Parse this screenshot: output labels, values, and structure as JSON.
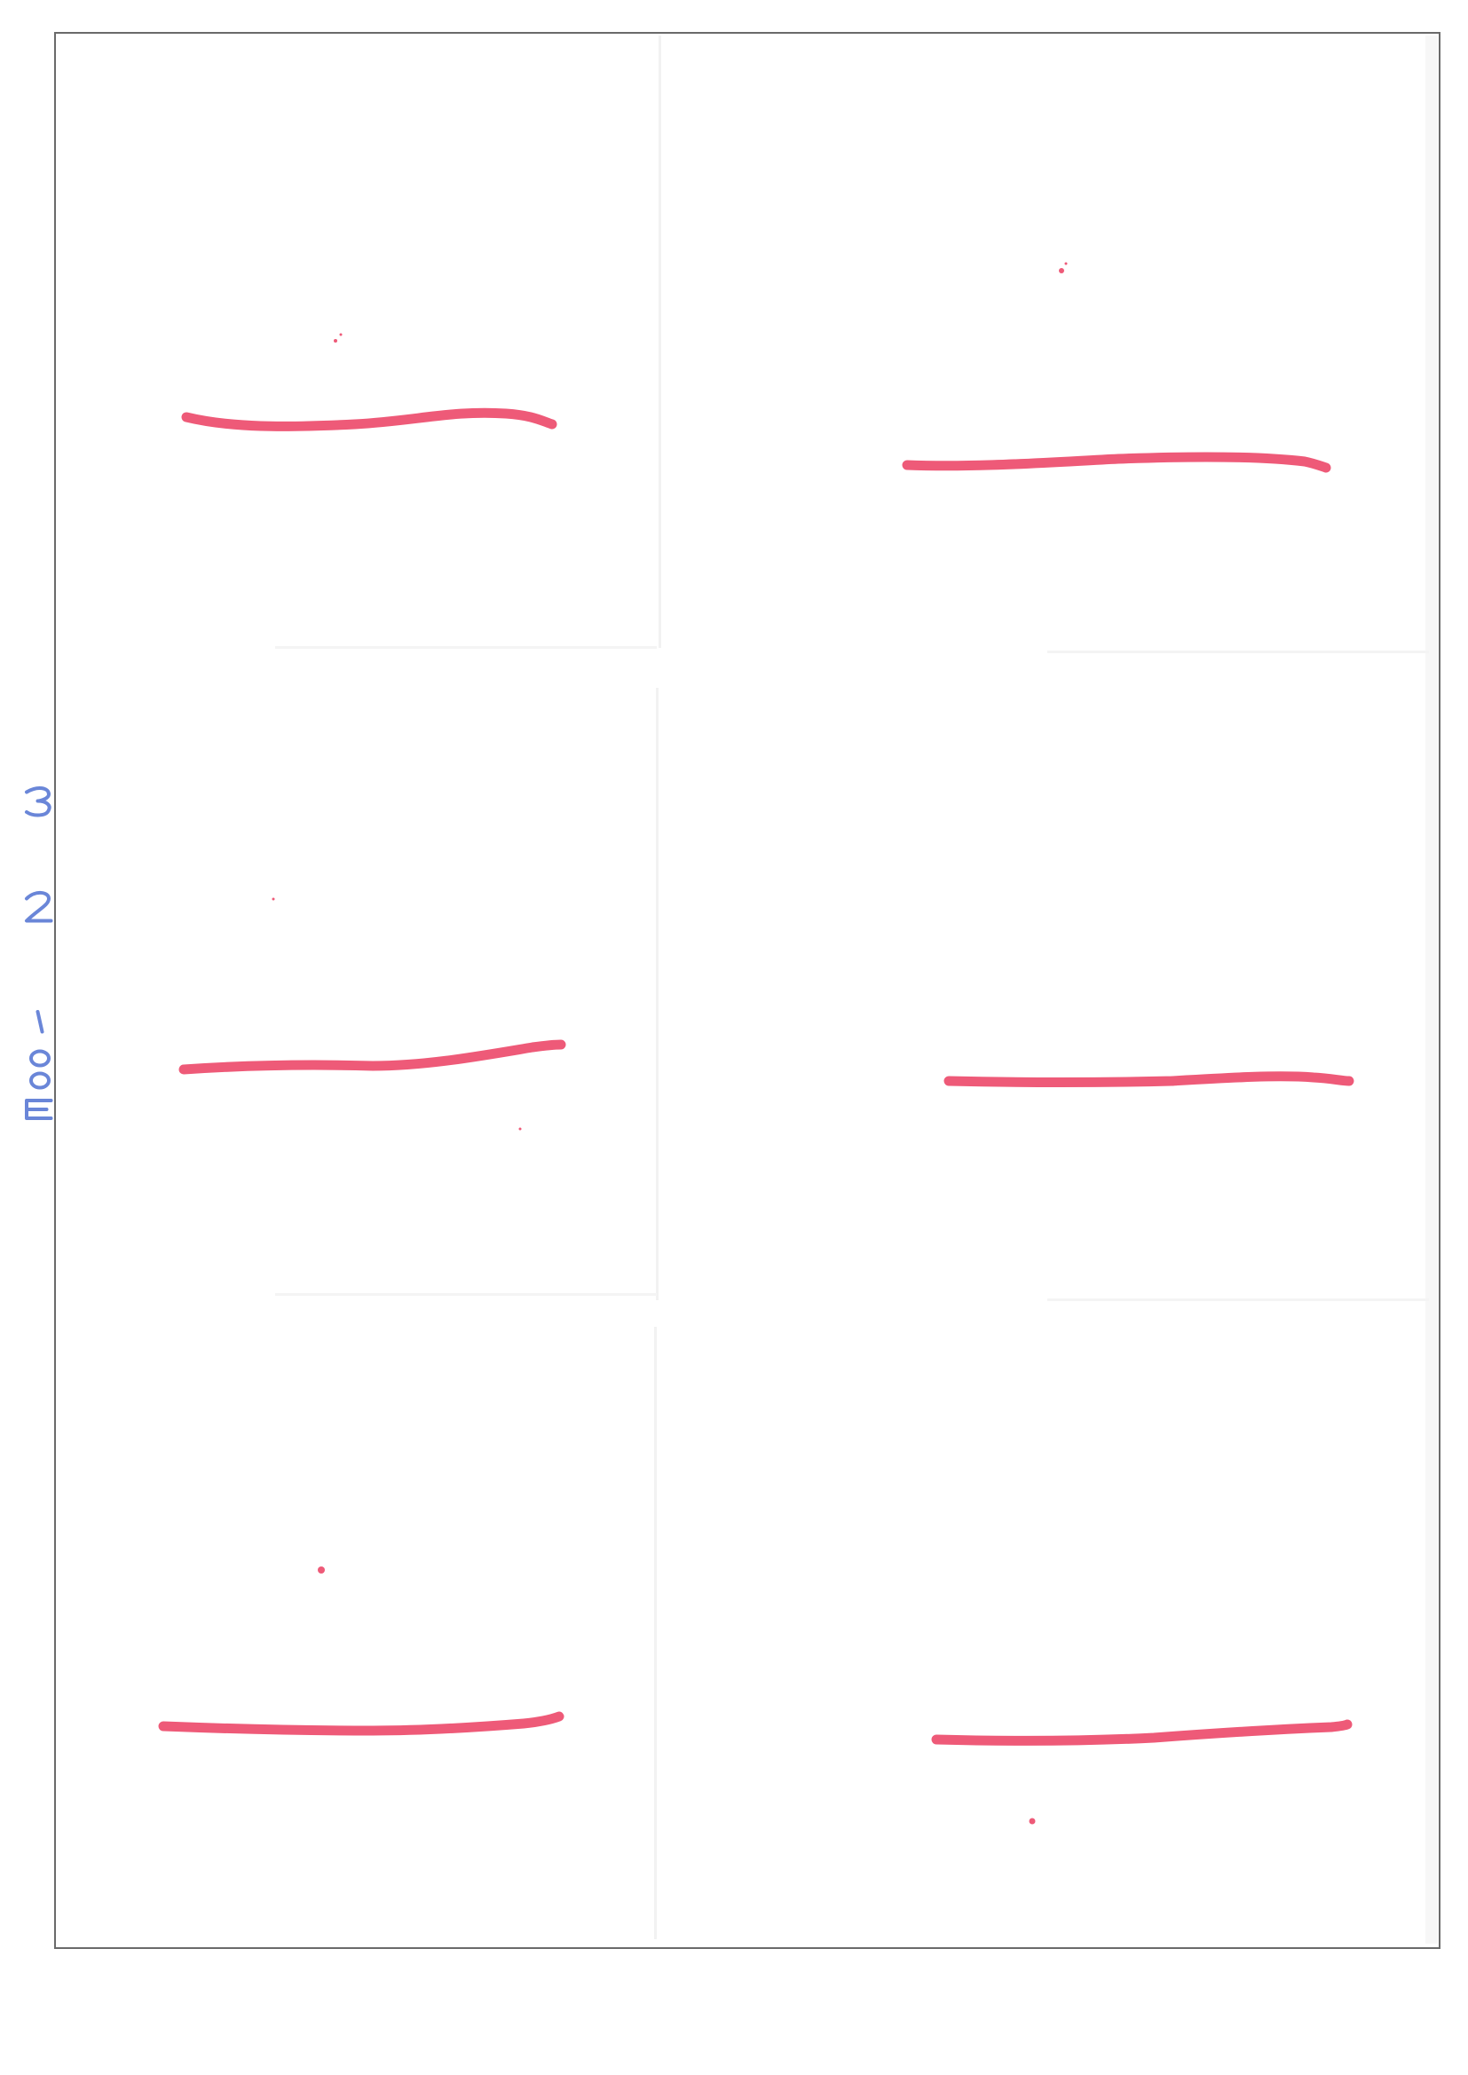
{
  "page": {
    "ink_color": "#ee5a78",
    "note_color": "#6a86d8",
    "frame_color": "#6a6a6a"
  },
  "handwritten_note": {
    "text": "E001 2 3"
  },
  "marks": [
    {
      "panel": "top-left",
      "kind": "horizontal-line"
    },
    {
      "panel": "top-right",
      "kind": "horizontal-line"
    },
    {
      "panel": "middle-left",
      "kind": "horizontal-line"
    },
    {
      "panel": "middle-right",
      "kind": "horizontal-line"
    },
    {
      "panel": "bottom-left",
      "kind": "horizontal-line"
    },
    {
      "panel": "bottom-right",
      "kind": "horizontal-line"
    }
  ]
}
